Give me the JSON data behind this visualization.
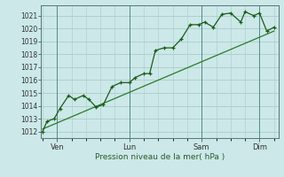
{
  "bg_color": "#cce8e8",
  "grid_color": "#aacccc",
  "line_color": "#1a5c1a",
  "trend_color": "#2a7a2a",
  "xlabel": "Pression niveau de la mer( hPa )",
  "ylim": [
    1011.5,
    1021.8
  ],
  "yticks": [
    1012,
    1013,
    1014,
    1015,
    1016,
    1017,
    1018,
    1019,
    1020,
    1021
  ],
  "xtick_labels": [
    "Ven",
    "Lun",
    "Sam",
    "Dim"
  ],
  "xtick_positions": [
    0.5,
    3.0,
    5.5,
    7.5
  ],
  "vline_positions": [
    0.5,
    3.0,
    5.5,
    7.5
  ],
  "forecast_x": [
    0.0,
    0.15,
    0.4,
    0.6,
    0.9,
    1.1,
    1.4,
    1.6,
    1.85,
    2.1,
    2.4,
    2.7,
    3.0,
    3.2,
    3.5,
    3.7,
    3.9,
    4.2,
    4.5,
    4.8,
    5.1,
    5.4,
    5.6,
    5.9,
    6.2,
    6.5,
    6.85,
    7.0,
    7.3,
    7.5,
    7.75,
    8.0
  ],
  "forecast_y": [
    1012.0,
    1012.8,
    1013.0,
    1013.8,
    1014.8,
    1014.5,
    1014.8,
    1014.5,
    1013.9,
    1014.1,
    1015.5,
    1015.8,
    1015.8,
    1016.2,
    1016.5,
    1016.5,
    1018.3,
    1018.5,
    1018.5,
    1019.2,
    1020.3,
    1020.3,
    1020.5,
    1020.1,
    1021.1,
    1021.2,
    1020.5,
    1021.3,
    1021.0,
    1021.2,
    1019.8,
    1020.1
  ],
  "trend_x": [
    0.0,
    8.0
  ],
  "trend_y": [
    1012.2,
    1019.8
  ],
  "xlim": [
    -0.05,
    8.15
  ]
}
